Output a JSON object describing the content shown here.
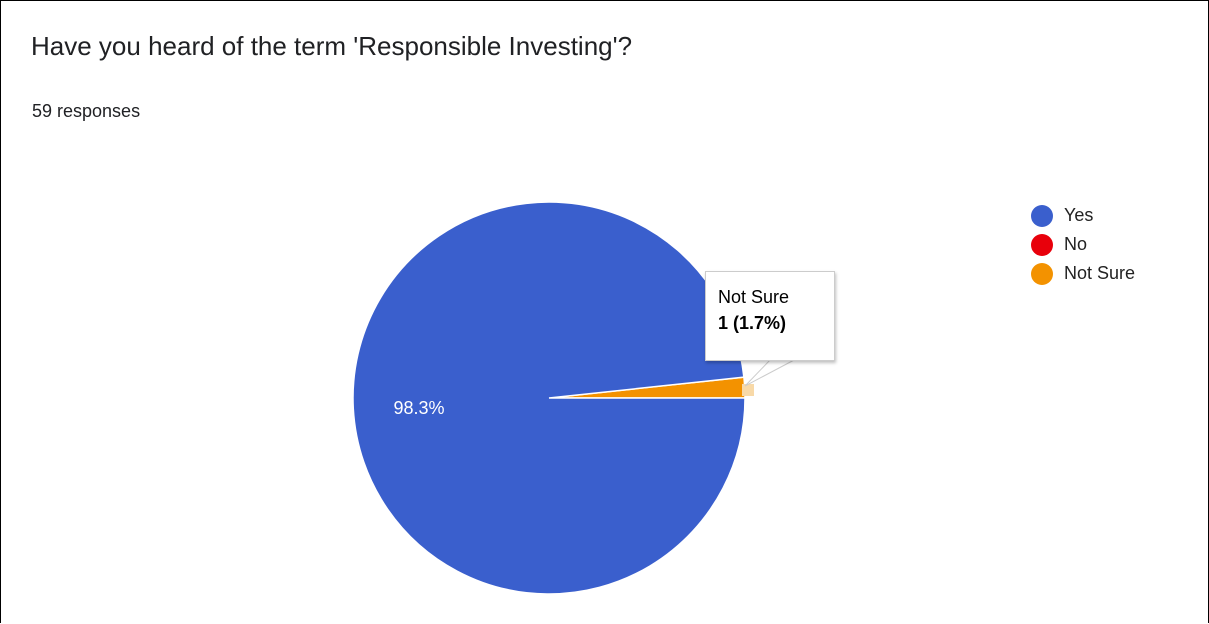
{
  "title": "Have you heard of the term 'Responsible Investing'?",
  "subtitle": "59 responses",
  "colors": {
    "Yes": "#3a5fcd",
    "No": "#e8000b",
    "Not Sure": "#f39200"
  },
  "tooltip": {
    "label": "Not Sure",
    "value": "1 (1.7%)"
  },
  "chart_data": {
    "type": "pie",
    "title": "Have you heard of the term 'Responsible Investing'?",
    "total": 59,
    "categories": [
      "Yes",
      "No",
      "Not Sure"
    ],
    "values": [
      58,
      0,
      1
    ],
    "percentages": [
      98.3,
      0,
      1.7
    ],
    "data_labels": [
      "98.3%",
      "",
      ""
    ],
    "legend": "right",
    "legend_entries": [
      "Yes",
      "No",
      "Not Sure"
    ]
  }
}
